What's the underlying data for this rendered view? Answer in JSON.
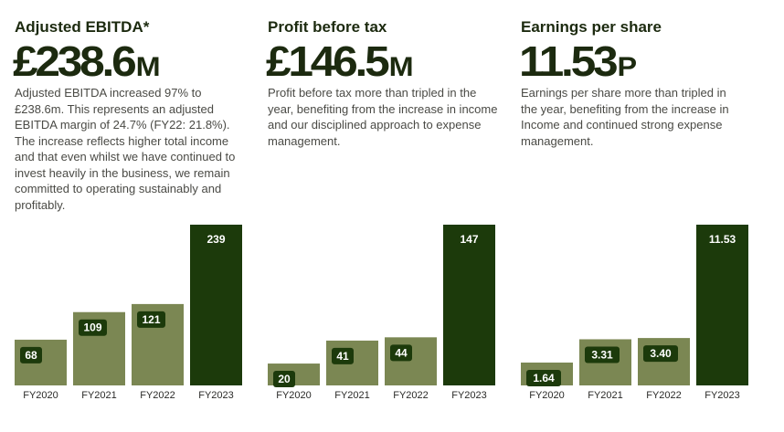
{
  "colors": {
    "bar_light": "#7b8753",
    "bar_dark": "#1c3a0b",
    "label_bg": "#1c3a0b",
    "label_text": "#ffffff",
    "heading": "#1c2a0f",
    "body_text": "#4a4a45"
  },
  "panels": [
    {
      "title": "Adjusted EBITDA*",
      "value": "£238.6",
      "unit": "M",
      "description": "Adjusted EBITDA increased 97% to £238.6m. This represents an adjusted EBITDA margin of 24.7% (FY22: 21.8%). The increase reflects higher total income and that even whilst we have continued to invest heavily in the business, we remain committed to operating sustainably and profitably."
    },
    {
      "title": "Profit before tax",
      "value": "£146.5",
      "unit": "M",
      "description": "Profit before tax more than tripled in the year, benefiting from the increase in income and our disciplined approach to expense management."
    },
    {
      "title": "Earnings per share",
      "value": "11.53",
      "unit": "P",
      "description": "Earnings per share more than tripled in the year, benefiting from the increase in Income and continued strong expense management."
    }
  ],
  "chart_data": [
    {
      "type": "bar",
      "categories": [
        "FY2020",
        "FY2021",
        "FY2022",
        "FY2023"
      ],
      "values": [
        68,
        109,
        121,
        239
      ],
      "labels": [
        "68",
        "109",
        "121",
        "239"
      ],
      "highlight_index": 3
    },
    {
      "type": "bar",
      "categories": [
        "FY2020",
        "FY2021",
        "FY2022",
        "FY2023"
      ],
      "values": [
        20,
        41,
        44,
        147
      ],
      "labels": [
        "20",
        "41",
        "44",
        "147"
      ],
      "highlight_index": 3
    },
    {
      "type": "bar",
      "categories": [
        "FY2020",
        "FY2021",
        "FY2022",
        "FY2023"
      ],
      "values": [
        1.64,
        3.31,
        3.4,
        11.53
      ],
      "labels": [
        "1.64",
        "3.31",
        "3.40",
        "11.53"
      ],
      "highlight_index": 3
    }
  ]
}
